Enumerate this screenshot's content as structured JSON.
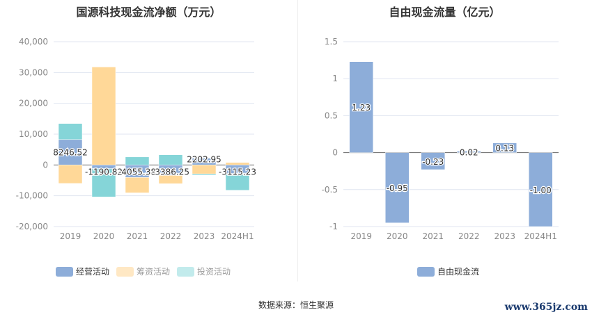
{
  "chart_data": [
    {
      "type": "bar",
      "stacked": true,
      "title": "国源科技现金流净额（万元）",
      "categories": [
        "2019",
        "2020",
        "2021",
        "2022",
        "2023",
        "2024H1"
      ],
      "ylim": [
        -20000,
        40000
      ],
      "yticks": [
        -20000,
        -10000,
        0,
        10000,
        20000,
        30000,
        40000
      ],
      "ytick_labels": [
        "-20,000",
        "-10,000",
        "0",
        "10,000",
        "20,000",
        "30,000",
        "40,000"
      ],
      "series": [
        {
          "name": "经营活动",
          "color": "#8dadd9",
          "values": [
            8246.52,
            -1190.82,
            -4055.38,
            -3386.25,
            2202.95,
            -3115.23
          ],
          "labels": [
            "8246.52",
            "-1190.82",
            "-4055.38",
            "-3386.25",
            "2202.95",
            "-3115.23"
          ]
        },
        {
          "name": "筹资活动",
          "color": "#ffd898",
          "values": [
            -6000,
            31800,
            -5000,
            -2700,
            -2900,
            800
          ]
        },
        {
          "name": "投资活动",
          "color": "#85d5d8",
          "values": [
            5200,
            -9200,
            2600,
            3300,
            -400,
            -5100
          ]
        }
      ],
      "legend": "bottom"
    },
    {
      "type": "bar",
      "title": "自由现金流量（亿元）",
      "categories": [
        "2019",
        "2020",
        "2021",
        "2022",
        "2023",
        "2024H1"
      ],
      "ylim": [
        -1,
        1.5
      ],
      "yticks": [
        -1,
        -0.5,
        0,
        0.5,
        1,
        1.5
      ],
      "ytick_labels": [
        "-1",
        "-0.5",
        "0",
        "0.5",
        "1",
        "1.5"
      ],
      "series": [
        {
          "name": "自由现金流",
          "color": "#8dadd9",
          "values": [
            1.23,
            -0.95,
            -0.23,
            0.02,
            0.13,
            -1.0
          ],
          "labels": [
            "1.23",
            "-0.95",
            "-0.23",
            "0.02",
            "0.13",
            "-1.00"
          ]
        }
      ],
      "legend": "bottom"
    }
  ],
  "legend_left": [
    {
      "label": "经营活动",
      "color": "#8dadd9"
    },
    {
      "label": "筹资活动",
      "color": "#ffe8c4"
    },
    {
      "label": "投资活动",
      "color": "#c2ebec"
    }
  ],
  "legend_right": [
    {
      "label": "自由现金流",
      "color": "#8dadd9"
    }
  ],
  "source": "数据来源：恒生聚源",
  "watermark": "www.365jz.com"
}
